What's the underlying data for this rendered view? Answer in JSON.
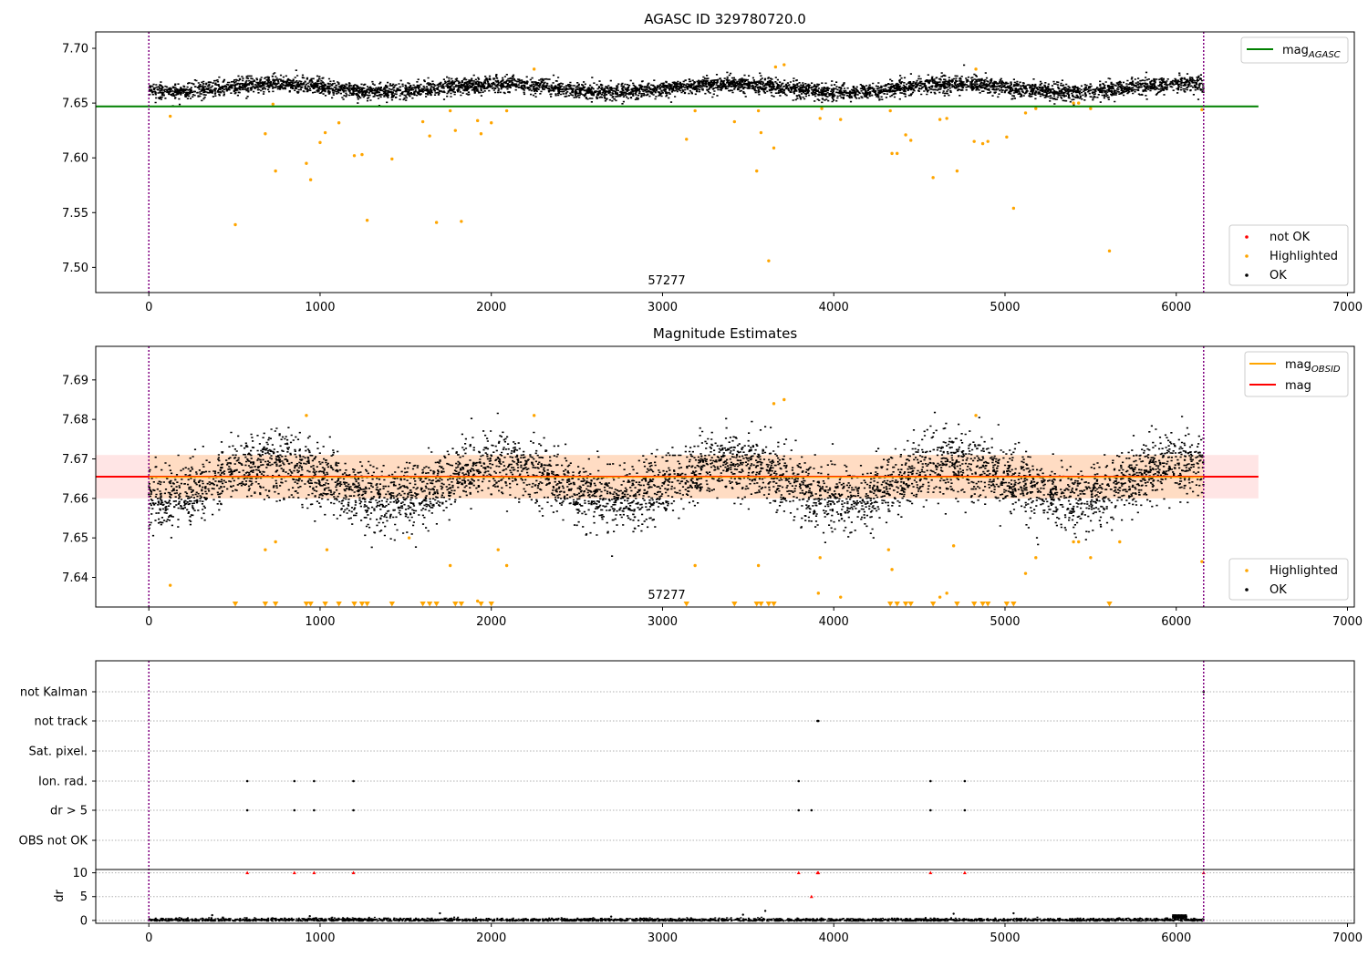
{
  "chart_data": [
    {
      "type": "scatter",
      "title": "AGASC ID 329780720.0",
      "xlim": [
        -310,
        7040
      ],
      "ylim": [
        7.477,
        7.715
      ],
      "xticks": [
        0,
        1000,
        2000,
        3000,
        4000,
        5000,
        6000,
        7000
      ],
      "yticks": [
        7.5,
        7.55,
        7.6,
        7.65,
        7.7
      ],
      "ytick_labels": [
        "7.50",
        "7.55",
        "7.60",
        "7.65",
        "7.70"
      ],
      "annotation": "57277",
      "vlines": [
        0,
        6160
      ],
      "hline": {
        "name": "mag_AGASC",
        "label_main": "mag",
        "label_sub": "AGASC",
        "y": 7.647,
        "x": [
          -310,
          6480
        ],
        "color": "#008000"
      },
      "ok_band": {
        "center": 7.6645,
        "halfwidth": 0.006,
        "wave_amp": 0.0035,
        "x_range": [
          0,
          6160
        ]
      },
      "legend": {
        "top_right": [
          {
            "label": "mag",
            "sub": "AGASC",
            "color": "#008000",
            "kind": "line"
          }
        ],
        "bottom_right": [
          {
            "label": "not OK",
            "color": "#ff0000",
            "kind": "dot"
          },
          {
            "label": "Highlighted",
            "color": "#ffa500",
            "kind": "dot"
          },
          {
            "label": "OK",
            "color": "#000000",
            "kind": "dot"
          }
        ]
      },
      "series": [
        {
          "name": "Highlighted",
          "color": "#ffa500",
          "points": [
            [
              125,
              7.638
            ],
            [
              505,
              7.539
            ],
            [
              680,
              7.622
            ],
            [
              740,
              7.588
            ],
            [
              725,
              7.649
            ],
            [
              920,
              7.595
            ],
            [
              945,
              7.58
            ],
            [
              1000,
              7.614
            ],
            [
              1030,
              7.623
            ],
            [
              1110,
              7.632
            ],
            [
              1200,
              7.602
            ],
            [
              1245,
              7.603
            ],
            [
              1275,
              7.543
            ],
            [
              1420,
              7.599
            ],
            [
              1600,
              7.633
            ],
            [
              1640,
              7.62
            ],
            [
              1680,
              7.541
            ],
            [
              1760,
              7.643
            ],
            [
              1790,
              7.625
            ],
            [
              1825,
              7.542
            ],
            [
              1920,
              7.634
            ],
            [
              1940,
              7.622
            ],
            [
              2000,
              7.632
            ],
            [
              2090,
              7.643
            ],
            [
              2250,
              7.681
            ],
            [
              3140,
              7.617
            ],
            [
              3190,
              7.643
            ],
            [
              3420,
              7.633
            ],
            [
              3550,
              7.588
            ],
            [
              3560,
              7.643
            ],
            [
              3575,
              7.623
            ],
            [
              3620,
              7.506
            ],
            [
              3650,
              7.609
            ],
            [
              3660,
              7.683
            ],
            [
              3710,
              7.685
            ],
            [
              3920,
              7.636
            ],
            [
              3930,
              7.645
            ],
            [
              4040,
              7.635
            ],
            [
              4330,
              7.643
            ],
            [
              4340,
              7.604
            ],
            [
              4370,
              7.604
            ],
            [
              4420,
              7.621
            ],
            [
              4450,
              7.616
            ],
            [
              4580,
              7.582
            ],
            [
              4620,
              7.635
            ],
            [
              4660,
              7.636
            ],
            [
              4720,
              7.588
            ],
            [
              4820,
              7.615
            ],
            [
              4830,
              7.681
            ],
            [
              4870,
              7.613
            ],
            [
              4900,
              7.615
            ],
            [
              5010,
              7.619
            ],
            [
              5050,
              7.554
            ],
            [
              5120,
              7.641
            ],
            [
              5180,
              7.645
            ],
            [
              5400,
              7.65
            ],
            [
              5430,
              7.65
            ],
            [
              5500,
              7.645
            ],
            [
              5610,
              7.515
            ],
            [
              6150,
              7.644
            ]
          ]
        }
      ]
    },
    {
      "type": "scatter",
      "title": "Magnitude Estimates",
      "xlim": [
        -310,
        7040
      ],
      "ylim": [
        7.6325,
        7.6985
      ],
      "xticks": [
        0,
        1000,
        2000,
        3000,
        4000,
        5000,
        6000,
        7000
      ],
      "yticks": [
        7.64,
        7.65,
        7.66,
        7.67,
        7.68,
        7.69
      ],
      "ytick_labels": [
        "7.64",
        "7.65",
        "7.66",
        "7.67",
        "7.68",
        "7.69"
      ],
      "annotation": "57277",
      "vlines": [
        0,
        6160
      ],
      "mag": {
        "name": "mag",
        "y": 7.6655,
        "band": [
          7.66,
          7.671
        ],
        "x": [
          -310,
          6480
        ],
        "color": "#ff0000"
      },
      "mag_obsid": {
        "name": "mag_OBSID",
        "label_main": "mag",
        "label_sub": "OBSID",
        "y": 7.6655,
        "x": [
          0,
          6160
        ],
        "color": "#ffa500"
      },
      "ok_band": {
        "center": 7.6645,
        "halfwidth": 0.0065,
        "wave_amp": 0.0045,
        "x_range": [
          0,
          6160
        ]
      },
      "legend": {
        "top_right": [
          {
            "label": "mag",
            "sub": "OBSID",
            "color": "#ffa500",
            "kind": "line"
          },
          {
            "label": "mag",
            "sub": "",
            "color": "#ff0000",
            "kind": "line"
          }
        ],
        "bottom_right": [
          {
            "label": "Highlighted",
            "color": "#ffa500",
            "kind": "dot"
          },
          {
            "label": "OK",
            "color": "#000000",
            "kind": "dot"
          }
        ]
      },
      "series": [
        {
          "name": "Highlighted",
          "color": "#ffa500",
          "points": [
            [
              125,
              7.638
            ],
            [
              680,
              7.647
            ],
            [
              740,
              7.649
            ],
            [
              920,
              7.681
            ],
            [
              1040,
              7.647
            ],
            [
              1520,
              7.65
            ],
            [
              1760,
              7.643
            ],
            [
              1920,
              7.634
            ],
            [
              2040,
              7.647
            ],
            [
              2090,
              7.643
            ],
            [
              2250,
              7.681
            ],
            [
              3190,
              7.643
            ],
            [
              3560,
              7.643
            ],
            [
              3650,
              7.684
            ],
            [
              3710,
              7.685
            ],
            [
              3920,
              7.645
            ],
            [
              3910,
              7.636
            ],
            [
              4040,
              7.635
            ],
            [
              4320,
              7.647
            ],
            [
              4340,
              7.642
            ],
            [
              4620,
              7.635
            ],
            [
              4660,
              7.636
            ],
            [
              4700,
              7.648
            ],
            [
              4830,
              7.681
            ],
            [
              5120,
              7.641
            ],
            [
              5180,
              7.645
            ],
            [
              5400,
              7.649
            ],
            [
              5430,
              7.649
            ],
            [
              5500,
              7.645
            ],
            [
              5670,
              7.649
            ],
            [
              6150,
              7.644
            ]
          ]
        },
        {
          "name": "Highlighted (below range)",
          "color": "#ffa500",
          "marker": "triangle-down",
          "x": [
            505,
            680,
            740,
            920,
            945,
            1030,
            1110,
            1200,
            1245,
            1275,
            1420,
            1600,
            1640,
            1680,
            1790,
            1825,
            1940,
            2000,
            3140,
            3420,
            3550,
            3575,
            3620,
            3650,
            4330,
            4370,
            4420,
            4450,
            4580,
            4720,
            4820,
            4870,
            4900,
            5010,
            5050,
            5610
          ]
        }
      ]
    },
    {
      "type": "scatter",
      "title": "",
      "xlim": [
        -310,
        7040
      ],
      "xticks": [
        0,
        1000,
        2000,
        3000,
        4000,
        5000,
        6000,
        7000
      ],
      "vlines": [
        0,
        6160
      ],
      "flag_rows": [
        "not Kalman",
        "not track",
        "Sat. pixel.",
        "Ion. rad.",
        "dr > 5",
        "OBS not OK"
      ],
      "flags": {
        "not track": [
          3905,
          3910
        ],
        "Ion. rad.": [
          575,
          850,
          965,
          1195,
          3795,
          4565,
          4765
        ],
        "dr > 5": [
          575,
          850,
          965,
          1195,
          3795,
          3870,
          4565,
          4765
        ],
        "not Kalman": [
          6160
        ]
      },
      "dr": {
        "ylabel": "dr",
        "ylim": [
          -0.6,
          10.5
        ],
        "yticks": [
          0,
          5,
          10
        ],
        "ytick_labels": [
          "0",
          "5",
          "10"
        ],
        "baseline": {
          "mean": 0.25,
          "spread": 0.35,
          "x_range": [
            0,
            6160
          ]
        },
        "outliers_red": [
          [
            575,
            10
          ],
          [
            850,
            10
          ],
          [
            965,
            10
          ],
          [
            1195,
            10
          ],
          [
            3795,
            10
          ],
          [
            3905,
            10
          ],
          [
            3910,
            10
          ],
          [
            4565,
            10
          ],
          [
            4765,
            10
          ],
          [
            6160,
            10
          ],
          [
            3870,
            5
          ]
        ],
        "spikes": [
          [
            1700,
            1.5
          ],
          [
            3600,
            2.0
          ],
          [
            3470,
            1.2
          ],
          [
            4700,
            1.4
          ],
          [
            5050,
            1.5
          ],
          [
            2700,
            0.8
          ],
          [
            940,
            0.9
          ],
          [
            370,
            1.1
          ]
        ],
        "bump": {
          "x": [
            5980,
            6060
          ],
          "y": [
            0.6,
            1.3
          ]
        }
      }
    }
  ]
}
